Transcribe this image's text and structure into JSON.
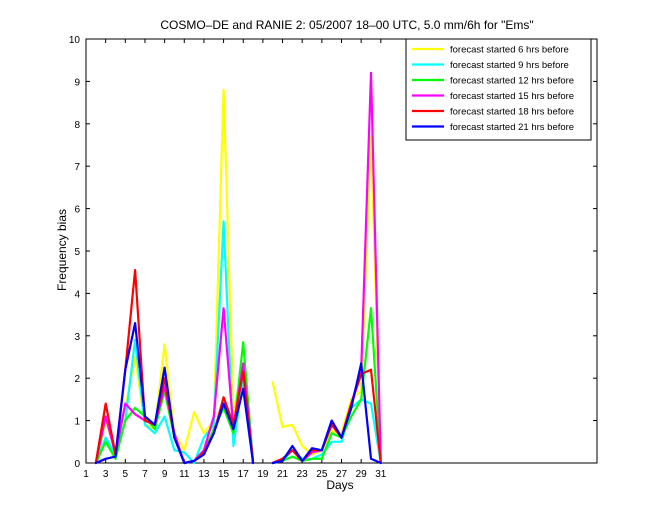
{
  "chart_data": {
    "type": "line",
    "title": "COSMO–DE and RANIE 2: 05/2007 18–00 UTC, 5.0 mm/6h for \"Ems\"",
    "xlabel": "Days",
    "ylabel": "Frequency bias",
    "xlim": [
      1,
      53
    ],
    "ylim": [
      0,
      10
    ],
    "xticks": [
      1,
      3,
      5,
      7,
      9,
      11,
      13,
      15,
      17,
      19,
      21,
      23,
      25,
      27,
      29,
      31
    ],
    "yticks": [
      0,
      1,
      2,
      3,
      4,
      5,
      6,
      7,
      8,
      9,
      10
    ],
    "grid": false,
    "legend_position": "top-right",
    "x": [
      2,
      3,
      4,
      5,
      6,
      7,
      8,
      9,
      10,
      11,
      12,
      13,
      14,
      15,
      16,
      17,
      18,
      19,
      20,
      21,
      22,
      23,
      24,
      25,
      26,
      27,
      28,
      29,
      30,
      31
    ],
    "series": [
      {
        "name": "forecast started 6 hrs before",
        "color": "#ffff00",
        "values": [
          0,
          1.0,
          0.3,
          1.3,
          2.5,
          0.9,
          0.8,
          2.8,
          0.7,
          0.3,
          1.2,
          0.7,
          1.0,
          8.8,
          1.2,
          2.3,
          0,
          null,
          1.9,
          0.85,
          0.9,
          0.4,
          0.2,
          0.3,
          0.75,
          0.7,
          1.5,
          1.7,
          7.7,
          0
        ]
      },
      {
        "name": "forecast started 9 hrs before",
        "color": "#00ffff",
        "values": [
          0,
          0.6,
          0.2,
          1.0,
          2.9,
          0.9,
          0.7,
          1.1,
          0.3,
          0.25,
          0,
          0.6,
          0.9,
          5.7,
          0.4,
          2.0,
          0,
          null,
          0,
          0.05,
          0.3,
          0.1,
          0.1,
          0.2,
          0.5,
          0.5,
          1.3,
          1.5,
          1.4,
          0
        ]
      },
      {
        "name": "forecast started 12 hrs before",
        "color": "#00ff00",
        "values": [
          0,
          0.5,
          0.1,
          1.0,
          1.3,
          1.1,
          0.8,
          1.7,
          0.6,
          0,
          0.05,
          0.25,
          0.8,
          1.3,
          0.7,
          2.85,
          0,
          null,
          0,
          0.05,
          0.15,
          0.05,
          0.1,
          0.1,
          0.7,
          0.6,
          1.1,
          1.5,
          3.65,
          0
        ]
      },
      {
        "name": "forecast started 15 hrs before",
        "color": "#ff00ff",
        "values": [
          0,
          1.1,
          0.2,
          1.4,
          1.15,
          1.0,
          0.9,
          1.8,
          0.7,
          0,
          0.05,
          0.3,
          1.1,
          3.65,
          0.8,
          2.35,
          0,
          null,
          0,
          0.1,
          0.3,
          0.05,
          0.25,
          0.3,
          1.0,
          0.6,
          1.4,
          2.2,
          9.2,
          0
        ]
      },
      {
        "name": "forecast started 18 hrs before",
        "color": "#ff0000",
        "values": [
          0,
          1.4,
          0.2,
          2.2,
          4.55,
          1.0,
          0.9,
          2.0,
          0.6,
          0,
          0.05,
          0.25,
          0.7,
          1.55,
          0.9,
          2.15,
          0,
          null,
          0,
          0.1,
          0.3,
          0.05,
          0.3,
          0.3,
          0.9,
          0.6,
          1.4,
          2.1,
          2.2,
          0
        ]
      },
      {
        "name": "forecast started 21 hrs before",
        "color": "#0000ff",
        "values": [
          0,
          0.1,
          0.15,
          2.2,
          3.3,
          1.1,
          0.9,
          2.25,
          0.6,
          0,
          0.05,
          0.2,
          0.7,
          1.4,
          0.8,
          1.75,
          0,
          null,
          0,
          0.05,
          0.4,
          0.05,
          0.35,
          0.3,
          1.0,
          0.6,
          1.3,
          2.35,
          0.1,
          0
        ]
      }
    ]
  }
}
